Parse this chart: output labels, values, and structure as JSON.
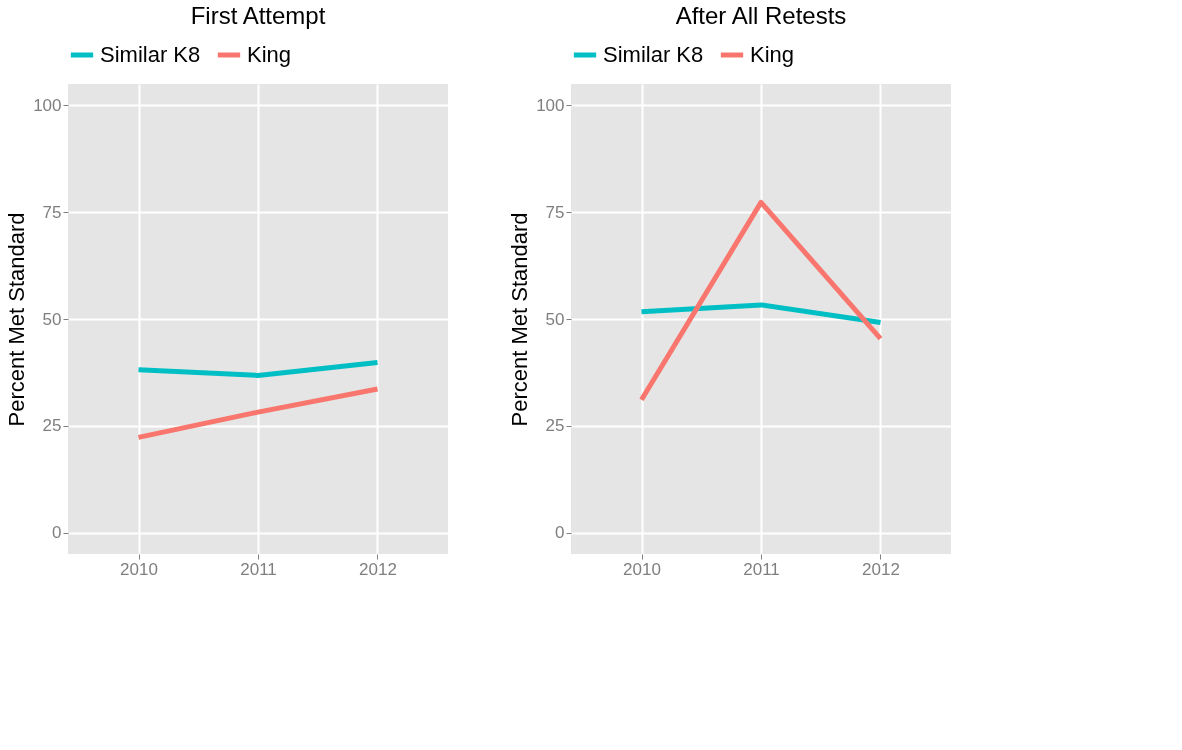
{
  "chart_data": [
    {
      "type": "line",
      "title": "First Attempt",
      "ylabel": "Percent Met Standard",
      "categories": [
        "2010",
        "2011",
        "2012"
      ],
      "series": [
        {
          "name": "Similar K8",
          "color": "#00bfc4",
          "values": [
            38.1,
            36.8,
            39.8
          ]
        },
        {
          "name": "King",
          "color": "#f8766d",
          "values": [
            22.3,
            28.2,
            33.6
          ]
        }
      ],
      "ylim": [
        -5,
        105
      ],
      "yticks": [
        0,
        25,
        50,
        75,
        100
      ],
      "grid": true,
      "legend": "top"
    },
    {
      "type": "line",
      "title": "After All Retests",
      "ylabel": "Percent Met Standard",
      "categories": [
        "2010",
        "2011",
        "2012"
      ],
      "series": [
        {
          "name": "Similar K8",
          "color": "#00bfc4",
          "values": [
            51.7,
            53.3,
            49.2
          ]
        },
        {
          "name": "King",
          "color": "#f8766d",
          "values": [
            31.1,
            77.3,
            45.4
          ]
        }
      ],
      "ylim": [
        -5,
        105
      ],
      "yticks": [
        0,
        25,
        50,
        75,
        100
      ],
      "grid": true,
      "legend": "top"
    }
  ]
}
